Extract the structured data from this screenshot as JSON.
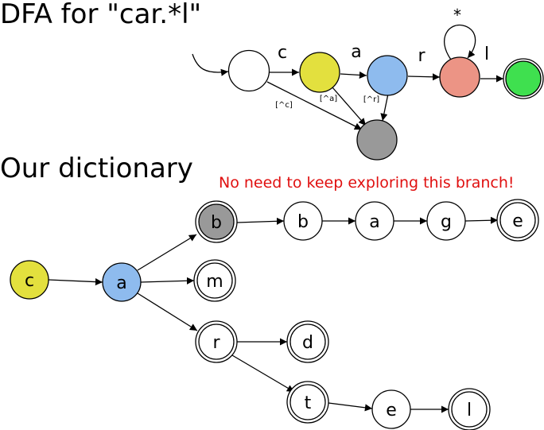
{
  "dfa": {
    "title": "DFA for \"car.*l\"",
    "transitions": {
      "c": "c",
      "a": "a",
      "r": "r",
      "l": "l",
      "star": "*",
      "not_c": "[^c]",
      "not_a": "[^a]",
      "not_r": "[^r]"
    },
    "colors": {
      "c_state": "#e3e03e",
      "a_state": "#8ebbee",
      "r_state": "#ec9485",
      "accept_state": "#3fe04f",
      "dead_state": "#999999"
    }
  },
  "dictionary": {
    "title": "Our dictionary",
    "note": "No need to keep exploring this branch!",
    "note_color": "#e01010",
    "nodes": {
      "c": "c",
      "a": "a",
      "b": "b",
      "m": "m",
      "r": "r",
      "b2": "b",
      "a2": "a",
      "g": "g",
      "e": "e",
      "d": "d",
      "t": "t",
      "e2": "e",
      "l": "l"
    }
  }
}
